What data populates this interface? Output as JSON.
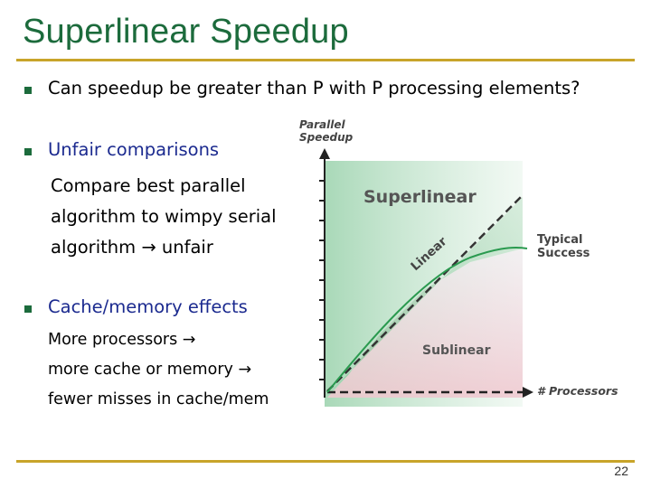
{
  "slide": {
    "title": "Superlinear Speedup",
    "page_number": "22",
    "accent_color": "#1c6b3c",
    "rule_color": "#c8a42a"
  },
  "bullets": [
    {
      "text": "Can speedup be greater than P with P processing elements?"
    },
    {
      "text": "Unfair comparisons",
      "sub": [
        "Compare best parallel",
        "algorithm to wimpy serial",
        "algorithm",
        "unfair"
      ]
    },
    {
      "text": "Cache/memory effects",
      "sub": [
        "More processors",
        "more cache or memory",
        "fewer misses in cache/mem"
      ]
    }
  ],
  "figure": {
    "y_axis_label_line1": "Parallel",
    "y_axis_label_line2": "Speedup",
    "x_axis_label": "# Processors",
    "region_superlinear": "Superlinear",
    "region_sublinear": "Sublinear",
    "linear_label": "Linear",
    "curve_label_line1": "Typical",
    "curve_label_line2": "Success"
  }
}
